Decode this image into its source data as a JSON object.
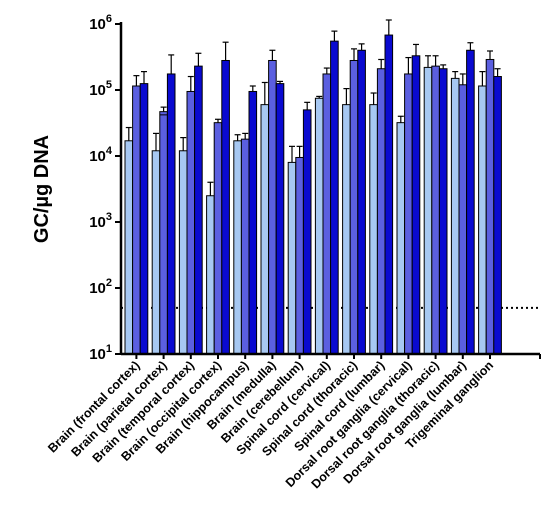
{
  "chart_data": {
    "type": "bar",
    "title": "",
    "xlabel": "",
    "ylabel": "GC/µg DNA",
    "yscale": "log",
    "ylim": [
      10,
      1000000
    ],
    "yticks": [
      {
        "base": "10",
        "exp": "1"
      },
      {
        "base": "10",
        "exp": "2"
      },
      {
        "base": "10",
        "exp": "3"
      },
      {
        "base": "10",
        "exp": "4"
      },
      {
        "base": "10",
        "exp": "5"
      },
      {
        "base": "10",
        "exp": "6"
      }
    ],
    "grid": false,
    "legend": "none",
    "reference_line": {
      "value": 50,
      "style": "dotted"
    },
    "categories": [
      "Brain (frontal cortex)",
      "Brain (parietal cortex)",
      "Brain (temporal cortex)",
      "Brain (occipital cortex)",
      "Brain (hippocampus)",
      "Brain (medulla)",
      "Brain (cerebellum)",
      "Spinal cord (cervical)",
      "Spinal cord (thoracic)",
      "Spinal cord (lumbar)",
      "Dorsal root ganglia (cervical)",
      "Dorsal root ganglia (thoracic)",
      "Dorsal root ganglia (lumbar)",
      "Trigeminal ganglion"
    ],
    "series": [
      {
        "color": "#a7c8f2",
        "values": [
          17000,
          12000,
          12000,
          2500,
          17000,
          60000,
          8000,
          75000,
          60000,
          60000,
          32000,
          220000,
          150000,
          115000
        ],
        "errors": [
          27000,
          22000,
          19000,
          4000,
          21000,
          130000,
          14000,
          80000,
          105000,
          90000,
          40000,
          330000,
          190000,
          190000
        ]
      },
      {
        "color": "#5b5fe0",
        "values": [
          115000,
          47000,
          95000,
          32000,
          18000,
          280000,
          9500,
          175000,
          280000,
          210000,
          175000,
          230000,
          120000,
          290000
        ],
        "errors": [
          165000,
          55000,
          160000,
          36000,
          22000,
          400000,
          14000,
          215000,
          420000,
          290000,
          310000,
          330000,
          175000,
          390000
        ],
        "extras": [
          {
            "cat": 1,
            "value": 42000
          }
        ]
      },
      {
        "color": "#0a0ad0",
        "values": [
          125000,
          175000,
          230000,
          280000,
          95000,
          125000,
          50000,
          550000,
          400000,
          680000,
          330000,
          210000,
          400000,
          160000
        ],
        "errors": [
          190000,
          340000,
          360000,
          530000,
          115000,
          135000,
          65000,
          780000,
          500000,
          1150000,
          490000,
          240000,
          520000,
          210000
        ]
      }
    ]
  }
}
